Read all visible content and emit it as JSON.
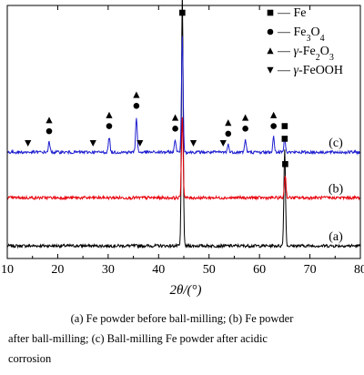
{
  "chart_data": {
    "type": "line",
    "xlabel": "2θ/(°)",
    "xlim": [
      10,
      80
    ],
    "xticks": [
      10,
      20,
      30,
      40,
      50,
      60,
      70,
      80
    ],
    "grid": false,
    "legend": {
      "placement": "top-right",
      "entries": [
        {
          "marker": "square",
          "label": "— Fe"
        },
        {
          "marker": "circle",
          "label": "— Fe3O4"
        },
        {
          "marker": "triangle-up",
          "label": "— γ-Fe2O3"
        },
        {
          "marker": "triangle-down",
          "label": "— γ-FeOOH"
        }
      ]
    },
    "series": [
      {
        "name": "(a)",
        "color": "#000000",
        "baseline": 0.05,
        "peaks": [
          [
            44.7,
            1.0
          ],
          [
            65.0,
            0.38
          ]
        ],
        "markers": [
          {
            "x": 44.7,
            "symbols": [
              "square"
            ]
          },
          {
            "x": 65.0,
            "symbols": [
              "square"
            ]
          }
        ]
      },
      {
        "name": "(b)",
        "color": "#e8000b",
        "baseline": 0.24,
        "peaks": [
          [
            44.7,
            0.32
          ],
          [
            65.1,
            0.09
          ]
        ],
        "markers": [
          {
            "x": 65.1,
            "symbols": [
              "square"
            ]
          }
        ]
      },
      {
        "name": "(c)",
        "color": "#1f1fd0",
        "baseline": 0.42,
        "peaks": [
          [
            18.3,
            0.04
          ],
          [
            30.2,
            0.06
          ],
          [
            35.6,
            0.14
          ],
          [
            43.3,
            0.05
          ],
          [
            44.7,
            0.46
          ],
          [
            53.8,
            0.03
          ],
          [
            57.2,
            0.05
          ],
          [
            62.8,
            0.06
          ],
          [
            65.0,
            0.06
          ]
        ],
        "markers": [
          {
            "x": 14.1,
            "symbols": [
              "triangle-down"
            ]
          },
          {
            "x": 18.3,
            "symbols": [
              "circle",
              "triangle-up"
            ]
          },
          {
            "x": 27.0,
            "symbols": [
              "triangle-down"
            ]
          },
          {
            "x": 30.2,
            "symbols": [
              "circle",
              "triangle-up"
            ]
          },
          {
            "x": 35.6,
            "symbols": [
              "circle",
              "triangle-up"
            ]
          },
          {
            "x": 36.3,
            "symbols": [
              "triangle-down"
            ]
          },
          {
            "x": 43.3,
            "symbols": [
              "circle",
              "triangle-up"
            ]
          },
          {
            "x": 44.7,
            "symbols": [
              "square"
            ]
          },
          {
            "x": 46.9,
            "symbols": [
              "triangle-down"
            ]
          },
          {
            "x": 52.8,
            "symbols": [
              "triangle-down"
            ]
          },
          {
            "x": 53.8,
            "symbols": [
              "circle",
              "triangle-up"
            ]
          },
          {
            "x": 57.2,
            "symbols": [
              "circle",
              "triangle-up"
            ]
          },
          {
            "x": 62.8,
            "symbols": [
              "circle",
              "triangle-up"
            ]
          },
          {
            "x": 65.0,
            "symbols": [
              "square"
            ]
          }
        ]
      }
    ]
  },
  "caption": {
    "line1": "(a) Fe powder before ball-milling; (b) Fe powder",
    "line2": "after ball-milling; (c) Ball-milling Fe powder after acidic",
    "line3": "corrosion"
  }
}
